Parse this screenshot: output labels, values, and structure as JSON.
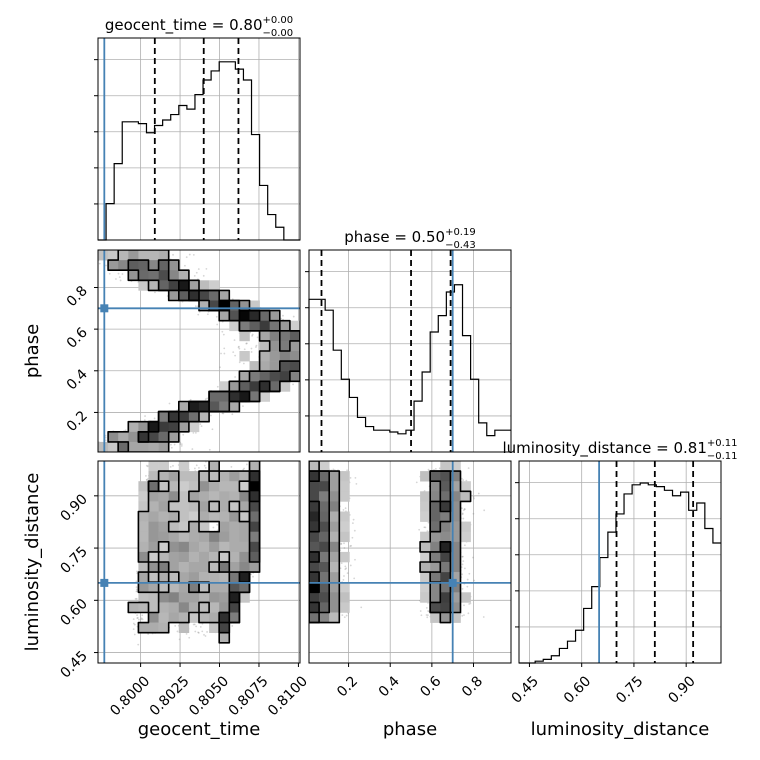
{
  "chart_data": {
    "type": "corner",
    "parameters": [
      "geocent_time",
      "phase",
      "luminosity_distance"
    ],
    "grid": true,
    "colors": {
      "truth": "#4682b4",
      "hist": "#000000",
      "contour": "#000000",
      "points": "#8a8a8a"
    },
    "titles": {
      "geocent_time": {
        "text": "geocent_time = 0.80",
        "plus": "+0.00",
        "minus": "−0.00"
      },
      "phase": {
        "text": "phase = 0.50",
        "plus": "+0.19",
        "minus": "−0.43"
      },
      "luminosity_distance": {
        "text": "luminosity_distance = 0.81",
        "plus": "+0.11",
        "minus": "−0.11"
      }
    },
    "axes": {
      "geocent_time": {
        "label": "geocent_time",
        "range": [
          0.7973,
          0.8101
        ],
        "ticks": [
          0.8,
          0.8025,
          0.805,
          0.8075,
          0.81
        ],
        "tick_labels": [
          "0.8000",
          "0.8025",
          "0.8050",
          "0.8075",
          "0.8100"
        ]
      },
      "phase": {
        "label": "phase",
        "range": [
          0.01,
          0.98
        ],
        "ticks": [
          0.2,
          0.4,
          0.6,
          0.8
        ],
        "tick_labels": [
          "0.2",
          "0.4",
          "0.6",
          "0.8"
        ]
      },
      "luminosity_distance": {
        "label": "luminosity_distance",
        "range": [
          0.42,
          1.0
        ],
        "ticks": [
          0.45,
          0.6,
          0.75,
          0.9
        ],
        "tick_labels": [
          "0.45",
          "0.60",
          "0.75",
          "0.90"
        ]
      }
    },
    "truths": {
      "geocent_time": 0.7977,
      "phase": 0.7,
      "luminosity_distance": 0.65
    },
    "quantiles": {
      "geocent_time": [
        0.8009,
        0.804,
        0.8062
      ],
      "phase": [
        0.07,
        0.5,
        0.69
      ],
      "luminosity_distance": [
        0.7,
        0.81,
        0.92
      ]
    },
    "histograms": {
      "geocent_time": [
        0.0,
        0.2,
        0.42,
        0.65,
        0.65,
        0.64,
        0.59,
        0.63,
        0.66,
        0.69,
        0.74,
        0.72,
        0.8,
        0.88,
        0.93,
        0.98,
        0.98,
        0.94,
        0.88,
        0.58,
        0.3,
        0.14,
        0.07,
        0.0,
        0.0
      ],
      "phase": [
        0.84,
        0.84,
        0.78,
        0.56,
        0.4,
        0.3,
        0.19,
        0.14,
        0.12,
        0.12,
        0.11,
        0.1,
        0.12,
        0.28,
        0.44,
        0.66,
        0.75,
        0.88,
        0.92,
        0.64,
        0.4,
        0.16,
        0.09,
        0.12,
        0.12
      ],
      "luminosity_distance": [
        0.0,
        0.0,
        0.01,
        0.02,
        0.04,
        0.08,
        0.12,
        0.18,
        0.3,
        0.42,
        0.58,
        0.72,
        0.82,
        0.93,
        0.98,
        0.99,
        0.98,
        0.97,
        0.95,
        0.92,
        0.94,
        0.84,
        0.88,
        0.74,
        0.66
      ]
    }
  }
}
